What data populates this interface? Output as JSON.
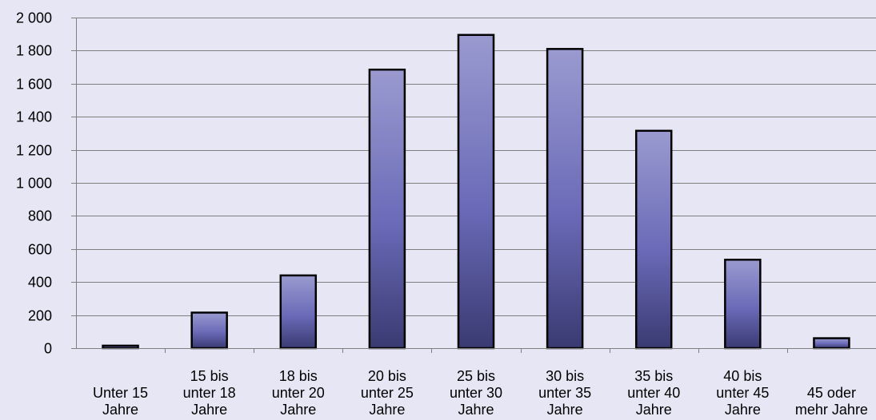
{
  "chart_data": {
    "type": "bar",
    "categories": [
      [
        "Unter 15",
        "Jahre"
      ],
      [
        "15 bis",
        "unter 18",
        "Jahre"
      ],
      [
        "18 bis",
        "unter 20",
        "Jahre"
      ],
      [
        "20 bis",
        "unter 25",
        "Jahre"
      ],
      [
        "25 bis",
        "unter 30",
        "Jahre"
      ],
      [
        "30 bis",
        "unter 35",
        "Jahre"
      ],
      [
        "35 bis",
        "unter 40",
        "Jahre"
      ],
      [
        "40 bis",
        "unter 45",
        "Jahre"
      ],
      [
        "45 oder",
        "mehr Jahre"
      ]
    ],
    "values": [
      15,
      215,
      440,
      1685,
      1895,
      1810,
      1315,
      535,
      60
    ],
    "title": "",
    "xlabel": "",
    "ylabel": "",
    "ylim": [
      0,
      2000
    ],
    "yticks": [
      0,
      200,
      400,
      600,
      800,
      1000,
      1200,
      1400,
      1600,
      1800,
      2000
    ],
    "ytick_labels": [
      "0",
      "200",
      "400",
      "600",
      "800",
      "1 000",
      "1 200",
      "1 400",
      "1 600",
      "1 800",
      "2 000"
    ],
    "grid": true,
    "legend": "none",
    "colors": {
      "background": "#e6e6f5",
      "bar_top": "#9a9ad0",
      "bar_mid": "#6a6ab8",
      "bar_bottom": "#3a3a72",
      "bar_border": "#000000",
      "grid": "#7f7f7f"
    }
  }
}
